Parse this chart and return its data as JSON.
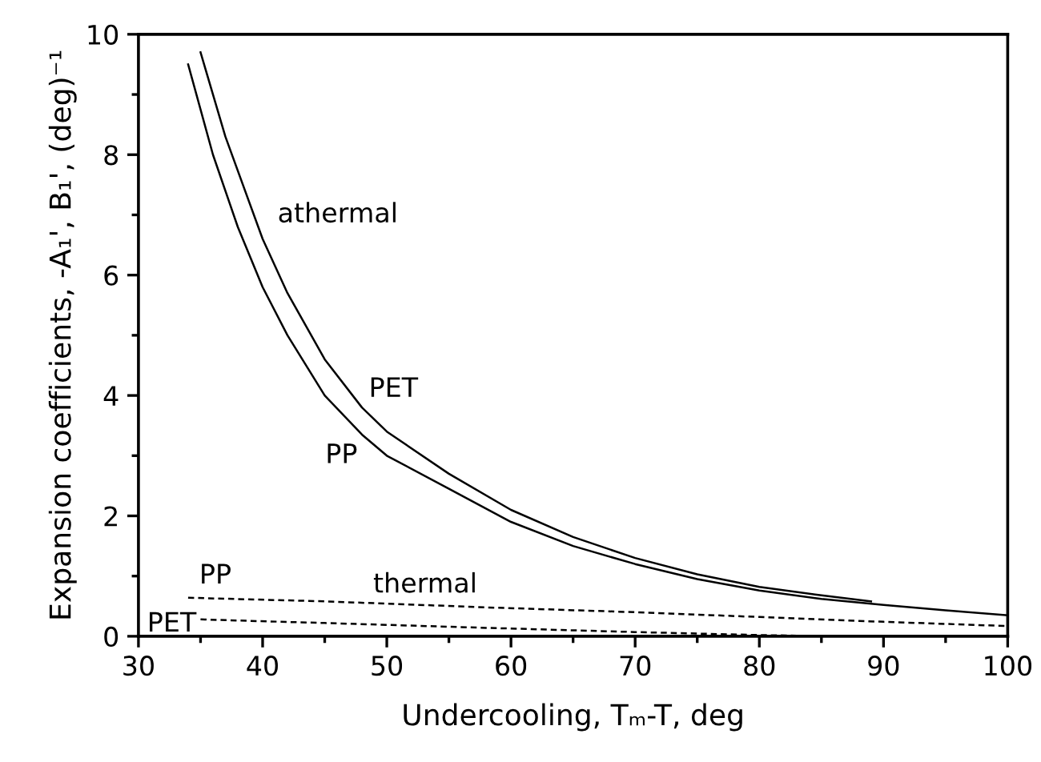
{
  "chart_data": {
    "type": "line",
    "xlabel": "Undercooling, Tₘ-T, deg",
    "ylabel": "Expansion coefficients, -A₁', B₁', (deg)⁻¹",
    "xlim": [
      30,
      100
    ],
    "xticks": [
      30,
      40,
      50,
      60,
      70,
      80,
      90,
      100
    ],
    "ylim": [
      0,
      10
    ],
    "yticks": [
      0,
      2,
      4,
      6,
      8,
      10
    ],
    "grid": false,
    "marker": "none",
    "series": [
      {
        "color": "#000000",
        "line_style": "solid",
        "x": [
          34,
          36,
          38,
          40,
          42,
          45,
          48,
          50,
          55,
          60,
          65,
          70,
          75,
          80,
          85,
          90,
          95,
          100
        ],
        "values": [
          9.5,
          8.0,
          6.8,
          5.8,
          5.0,
          4.0,
          3.35,
          3.0,
          2.45,
          1.9,
          1.5,
          1.2,
          0.95,
          0.76,
          0.62,
          0.52,
          0.43,
          0.35
        ]
      },
      {
        "color": "#000000",
        "line_style": "solid",
        "x": [
          35,
          37,
          40,
          42,
          45,
          48,
          50,
          55,
          60,
          65,
          70,
          75,
          80,
          85,
          89
        ],
        "values": [
          9.7,
          8.3,
          6.6,
          5.7,
          4.6,
          3.8,
          3.4,
          2.7,
          2.1,
          1.65,
          1.3,
          1.03,
          0.82,
          0.68,
          0.58
        ]
      },
      {
        "color": "#000000",
        "line_style": "dashed",
        "x": [
          34,
          45,
          58,
          70,
          80,
          90,
          100
        ],
        "values": [
          0.64,
          0.58,
          0.48,
          0.4,
          0.32,
          0.24,
          0.17
        ]
      },
      {
        "color": "#000000",
        "line_style": "dashed",
        "x": [
          35,
          45,
          58,
          70,
          80,
          86
        ],
        "values": [
          0.28,
          0.22,
          0.14,
          0.07,
          0.02,
          0
        ]
      }
    ],
    "annotations": [
      "athermal",
      "PET",
      "PP",
      "thermal",
      "PP",
      "PET"
    ]
  }
}
